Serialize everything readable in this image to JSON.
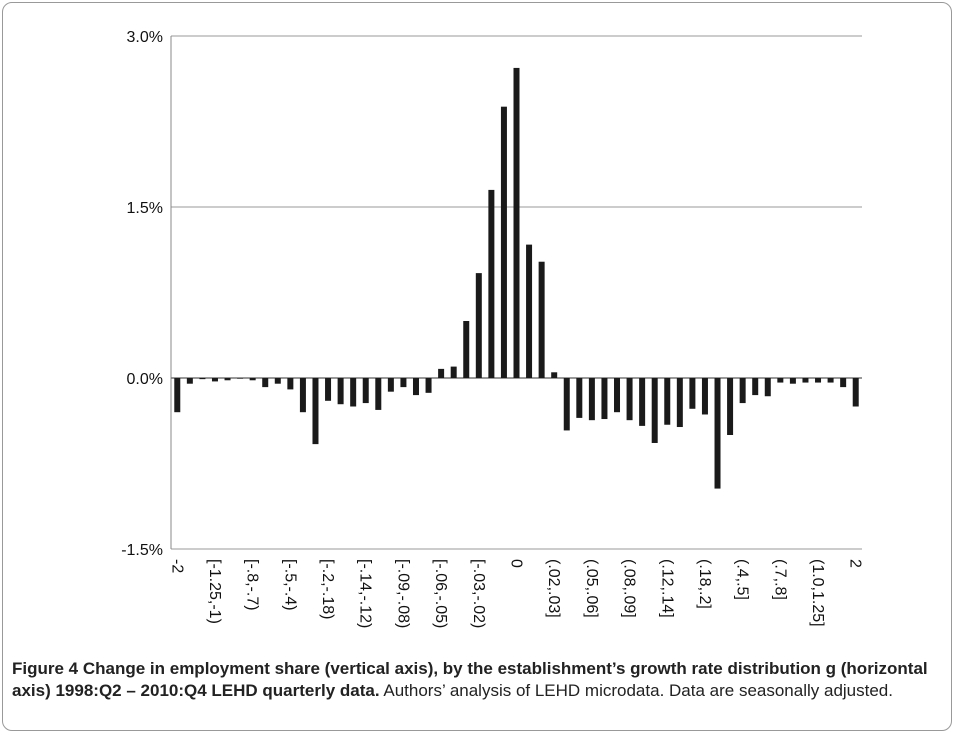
{
  "chart_data": {
    "type": "bar",
    "categories": [
      "-2",
      null,
      null,
      "[-1.25,-1)",
      null,
      null,
      "[-.8,-.7)",
      null,
      null,
      "[-.5,-.4)",
      null,
      null,
      "[-.2,-.18)",
      null,
      null,
      "[-.14,-.12)",
      null,
      null,
      "[-.09,-.08)",
      null,
      null,
      "[-.06,-.05)",
      null,
      null,
      "[-.03,-.02)",
      null,
      null,
      "0",
      null,
      null,
      "(.02,.03]",
      null,
      null,
      "(.05,.06]",
      null,
      null,
      "(.08,.09]",
      null,
      null,
      "(.12,.14]",
      null,
      null,
      "(.18,.2]",
      null,
      null,
      "(.4,.5]",
      null,
      null,
      "(.7,.8]",
      null,
      null,
      "(1.0,1.25]",
      null,
      null,
      "2"
    ],
    "values": [
      -0.3,
      -0.05,
      -0.01,
      -0.03,
      -0.02,
      -0.005,
      -0.02,
      -0.08,
      -0.05,
      -0.1,
      -0.3,
      -0.58,
      -0.2,
      -0.23,
      -0.25,
      -0.22,
      -0.28,
      -0.12,
      -0.08,
      -0.15,
      -0.13,
      0.08,
      0.1,
      0.5,
      0.92,
      1.65,
      2.38,
      2.72,
      1.17,
      1.02,
      0.05,
      -0.46,
      -0.35,
      -0.37,
      -0.36,
      -0.3,
      -0.37,
      -0.42,
      -0.57,
      -0.41,
      -0.43,
      -0.27,
      -0.32,
      -0.97,
      -0.5,
      -0.22,
      -0.15,
      -0.16,
      -0.04,
      -0.05,
      -0.04,
      -0.04,
      -0.04,
      -0.08,
      -0.25
    ],
    "color": "#1a1a1a",
    "ylim": [
      -1.5,
      3.0
    ],
    "yticks": [
      {
        "value": -1.5,
        "label": "-1.5%"
      },
      {
        "value": 0,
        "label": "0.0%"
      },
      {
        "value": 1.5,
        "label": "1.5%"
      },
      {
        "value": 3.0,
        "label": "3.0%"
      }
    ],
    "grid": true
  },
  "caption": {
    "title": "Figure 4 Change in employment share (vertical axis), by the establishment’s growth rate distribution g (horizontal axis) 1998:Q2 – 2010:Q4 LEHD quarterly data.",
    "text": "Authors’ analysis of LEHD microdata. Data are seasonally adjusted."
  }
}
